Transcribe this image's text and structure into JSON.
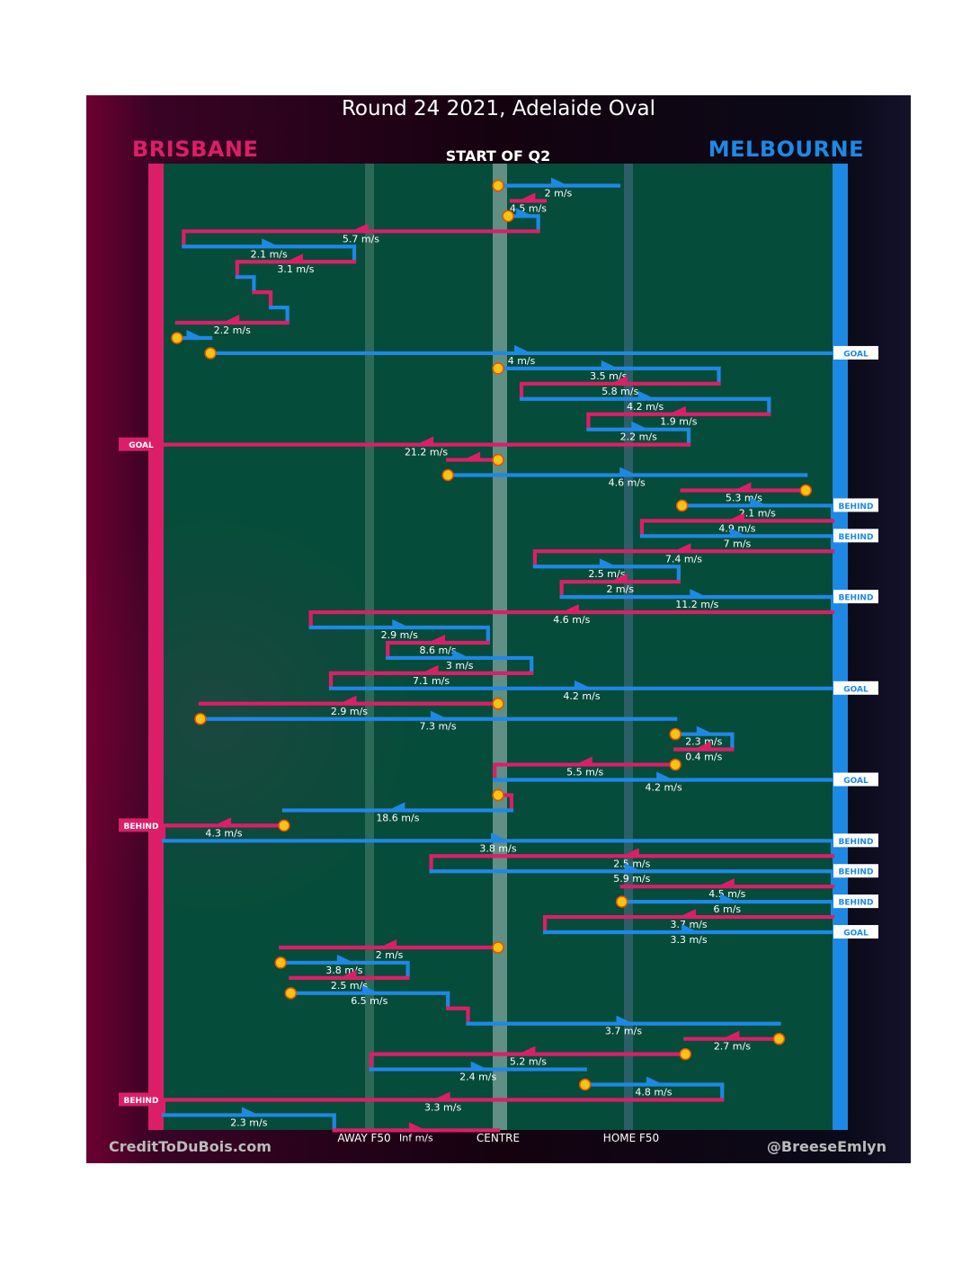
{
  "title": "Round 24 2021, Adelaide Oval",
  "period": "START OF Q2",
  "teams": {
    "home": {
      "name": "BRISBANE",
      "color": "#dc1e68"
    },
    "away": {
      "name": "MELBOURNE",
      "color": "#1e88e5"
    }
  },
  "footer": {
    "left": "CreditToDuBois.com",
    "right": "@BreeseEmlyn"
  },
  "field_labels": {
    "away_f50": "AWAY F50",
    "centre": "CENTRE",
    "home_f50": "HOME F50"
  },
  "chart_data": {
    "type": "step-chain",
    "title": "Round 24 2021, Adelaide Oval",
    "subtitle": "START OF Q2",
    "x_axis": {
      "min": 0,
      "max": 100,
      "ticks": [
        {
          "x": 30,
          "label": "AWAY F50"
        },
        {
          "x": 50,
          "label": "CENTRE"
        },
        {
          "x": 70,
          "label": "HOME F50"
        }
      ]
    },
    "y_axis": {
      "min": 0,
      "max": 62,
      "direction": "down",
      "meaning": "sequence of possessions"
    },
    "legend": [
      {
        "team": "BRISBANE",
        "color": "#dc1e68"
      },
      {
        "team": "MELBOURNE",
        "color": "#1e88e5"
      }
    ],
    "segments": [
      {
        "team": "blue",
        "x1": 50,
        "x2": 68,
        "y": 0.5,
        "label": "2 m/s",
        "start_marker": true
      },
      {
        "team": "red",
        "x1": 57,
        "x2": 52,
        "y": 1.5,
        "label": "4.5 m/s"
      },
      {
        "team": "blue",
        "x1": 51.5,
        "x2": 56,
        "y": 2.5,
        "start_marker": true
      },
      {
        "team": "red",
        "x1": 56,
        "x2": 3,
        "y": 3.5,
        "label": "5.7 m/s"
      },
      {
        "team": "blue",
        "x1": 3,
        "x2": 28.5,
        "y": 4.5,
        "label": "2.1 m/s"
      },
      {
        "team": "red",
        "x1": 28.5,
        "x2": 11,
        "y": 5.5,
        "label": "3.1 m/s"
      },
      {
        "team": "blue",
        "x1": 11,
        "x2": 13.5,
        "y": 6.5
      },
      {
        "team": "red",
        "x1": 13.5,
        "x2": 16,
        "y": 7.5
      },
      {
        "team": "blue",
        "x1": 16,
        "x2": 18.5,
        "y": 8.5
      },
      {
        "team": "red",
        "x1": 18.5,
        "x2": 2,
        "y": 9.5,
        "label": "2.2 m/s"
      },
      {
        "team": "blue",
        "x1": 2,
        "x2": 7,
        "y": 10.5,
        "start_marker": true
      },
      {
        "team": "blue",
        "x1": 7,
        "x2": 100,
        "y": 11.5,
        "label": "4 m/s",
        "start_marker": true,
        "end_tag": "GOAL"
      },
      {
        "team": "blue",
        "x1": 50,
        "x2": 83,
        "y": 12.5,
        "label": "3.5 m/s",
        "start_marker": true
      },
      {
        "team": "red",
        "x1": 83,
        "x2": 53.5,
        "y": 13.5,
        "label": "5.8 m/s"
      },
      {
        "team": "blue",
        "x1": 53.5,
        "x2": 90.5,
        "y": 14.5,
        "label": "4.2 m/s"
      },
      {
        "team": "red",
        "x1": 90.5,
        "x2": 63.5,
        "y": 15.5,
        "label": "1.9 m/s"
      },
      {
        "team": "blue",
        "x1": 63.5,
        "x2": 78.5,
        "y": 16.5,
        "label": "2.2 m/s"
      },
      {
        "team": "red",
        "x1": 78.5,
        "x2": 0,
        "y": 17.5,
        "label": "21.2 m/s",
        "end_tag": "GOAL"
      },
      {
        "team": "red",
        "x1": 50,
        "x2": 42.5,
        "y": 18.5,
        "start_marker": true
      },
      {
        "team": "blue",
        "x1": 42.5,
        "x2": 96,
        "y": 19.5,
        "label": "4.6 m/s",
        "start_marker": true
      },
      {
        "team": "red",
        "x1": 96,
        "x2": 77.5,
        "y": 20.5,
        "label": "5.3 m/s",
        "start_marker": true
      },
      {
        "team": "blue",
        "x1": 77.5,
        "x2": 100,
        "y": 21.5,
        "label": "2.1 m/s",
        "start_marker": true,
        "end_tag": "BEHIND"
      },
      {
        "team": "red",
        "x1": 100,
        "x2": 71.5,
        "y": 22.5,
        "label": "4.9 m/s"
      },
      {
        "team": "blue",
        "x1": 71.5,
        "x2": 100,
        "y": 23.5,
        "label": "7 m/s",
        "end_tag": "BEHIND"
      },
      {
        "team": "red",
        "x1": 100,
        "x2": 55.5,
        "y": 24.5,
        "label": "7.4 m/s"
      },
      {
        "team": "blue",
        "x1": 55.5,
        "x2": 77,
        "y": 25.5,
        "label": "2.5 m/s"
      },
      {
        "team": "red",
        "x1": 77,
        "x2": 59.5,
        "y": 26.5,
        "label": "2 m/s"
      },
      {
        "team": "blue",
        "x1": 59.5,
        "x2": 100,
        "y": 27.5,
        "label": "11.2 m/s",
        "end_tag": "BEHIND"
      },
      {
        "team": "red",
        "x1": 100,
        "x2": 22,
        "y": 28.5,
        "label": "4.6 m/s"
      },
      {
        "team": "blue",
        "x1": 22,
        "x2": 48.5,
        "y": 29.5,
        "label": "2.9 m/s"
      },
      {
        "team": "red",
        "x1": 48.5,
        "x2": 33.5,
        "y": 30.5,
        "label": "8.6 m/s"
      },
      {
        "team": "blue",
        "x1": 33.5,
        "x2": 55,
        "y": 31.5,
        "label": "3 m/s"
      },
      {
        "team": "red",
        "x1": 55,
        "x2": 25,
        "y": 32.5,
        "label": "7.1 m/s"
      },
      {
        "team": "blue",
        "x1": 25,
        "x2": 100,
        "y": 33.5,
        "label": "4.2 m/s",
        "end_tag": "GOAL"
      },
      {
        "team": "red",
        "x1": 50,
        "x2": 5.5,
        "y": 34.5,
        "label": "2.9 m/s",
        "start_marker": true
      },
      {
        "team": "blue",
        "x1": 5.5,
        "x2": 76.5,
        "y": 35.5,
        "label": "7.3 m/s",
        "start_marker": true
      },
      {
        "team": "blue",
        "x1": 76.5,
        "x2": 85,
        "y": 36.5,
        "label": "2.3 m/s",
        "start_marker": true
      },
      {
        "team": "red",
        "x1": 85,
        "x2": 76.5,
        "y": 37.5,
        "label": "0.4 m/s"
      },
      {
        "team": "red",
        "x1": 76.5,
        "x2": 49.5,
        "y": 38.5,
        "label": "5.5 m/s",
        "start_marker": true
      },
      {
        "team": "blue",
        "x1": 49.5,
        "x2": 100,
        "y": 39.5,
        "label": "4.2 m/s",
        "end_tag": "GOAL"
      },
      {
        "team": "red",
        "x1": 50,
        "x2": 52,
        "y": 40.5,
        "start_marker": true
      },
      {
        "team": "blue",
        "x1": 52,
        "x2": 18,
        "y": 41.5,
        "label": "18.6 m/s"
      },
      {
        "team": "red",
        "x1": 18,
        "x2": 0,
        "y": 42.5,
        "label": "4.3 m/s",
        "start_marker": true,
        "end_tag": "BEHIND"
      },
      {
        "team": "blue",
        "x1": 0,
        "x2": 100,
        "y": 43.5,
        "label": "3.8 m/s",
        "end_tag": "BEHIND"
      },
      {
        "team": "red",
        "x1": 100,
        "x2": 40,
        "y": 44.5,
        "label": "2.5 m/s"
      },
      {
        "team": "blue",
        "x1": 40,
        "x2": 100,
        "y": 45.5,
        "label": "5.9 m/s",
        "end_tag": "BEHIND"
      },
      {
        "team": "red",
        "x1": 100,
        "x2": 68.5,
        "y": 46.5,
        "label": "4.5 m/s"
      },
      {
        "team": "blue",
        "x1": 68.5,
        "x2": 100,
        "y": 47.5,
        "label": "6 m/s",
        "start_marker": true,
        "end_tag": "BEHIND"
      },
      {
        "team": "red",
        "x1": 100,
        "x2": 57,
        "y": 48.5,
        "label": "3.7 m/s"
      },
      {
        "team": "blue",
        "x1": 57,
        "x2": 100,
        "y": 49.5,
        "label": "3.3 m/s",
        "end_tag": "GOAL"
      },
      {
        "team": "red",
        "x1": 50,
        "x2": 17.5,
        "y": 50.5,
        "label": "2 m/s",
        "start_marker": true
      },
      {
        "team": "blue",
        "x1": 17.5,
        "x2": 36.5,
        "y": 51.5,
        "label": "3.8 m/s",
        "start_marker": true
      },
      {
        "team": "red",
        "x1": 36.5,
        "x2": 19,
        "y": 52.5,
        "label": "2.5 m/s"
      },
      {
        "team": "blue",
        "x1": 19,
        "x2": 42.5,
        "y": 53.5,
        "label": "6.5 m/s",
        "start_marker": true
      },
      {
        "team": "red",
        "x1": 42.5,
        "x2": 45.5,
        "y": 54.5
      },
      {
        "team": "blue",
        "x1": 45.5,
        "x2": 92,
        "y": 55.5,
        "label": "3.7 m/s"
      },
      {
        "team": "red",
        "x1": 92,
        "x2": 78,
        "y": 56.5,
        "label": "2.7 m/s",
        "start_marker": true
      },
      {
        "team": "red",
        "x1": 78,
        "x2": 31,
        "y": 57.5,
        "label": "5.2 m/s",
        "start_marker": true
      },
      {
        "team": "blue",
        "x1": 31,
        "x2": 63,
        "y": 58.5,
        "label": "2.4 m/s"
      },
      {
        "team": "blue",
        "x1": 63,
        "x2": 83.5,
        "y": 59.5,
        "label": "4.8 m/s",
        "start_marker": true
      },
      {
        "team": "red",
        "x1": 83.5,
        "x2": 0,
        "y": 60.5,
        "label": "3.3 m/s",
        "end_tag": "BEHIND"
      },
      {
        "team": "blue",
        "x1": 0,
        "x2": 25.5,
        "y": 61.5,
        "label": "2.3 m/s"
      },
      {
        "team": "red",
        "x1": 25.5,
        "x2": 50,
        "y": 62.5,
        "label": "Inf m/s"
      }
    ]
  }
}
